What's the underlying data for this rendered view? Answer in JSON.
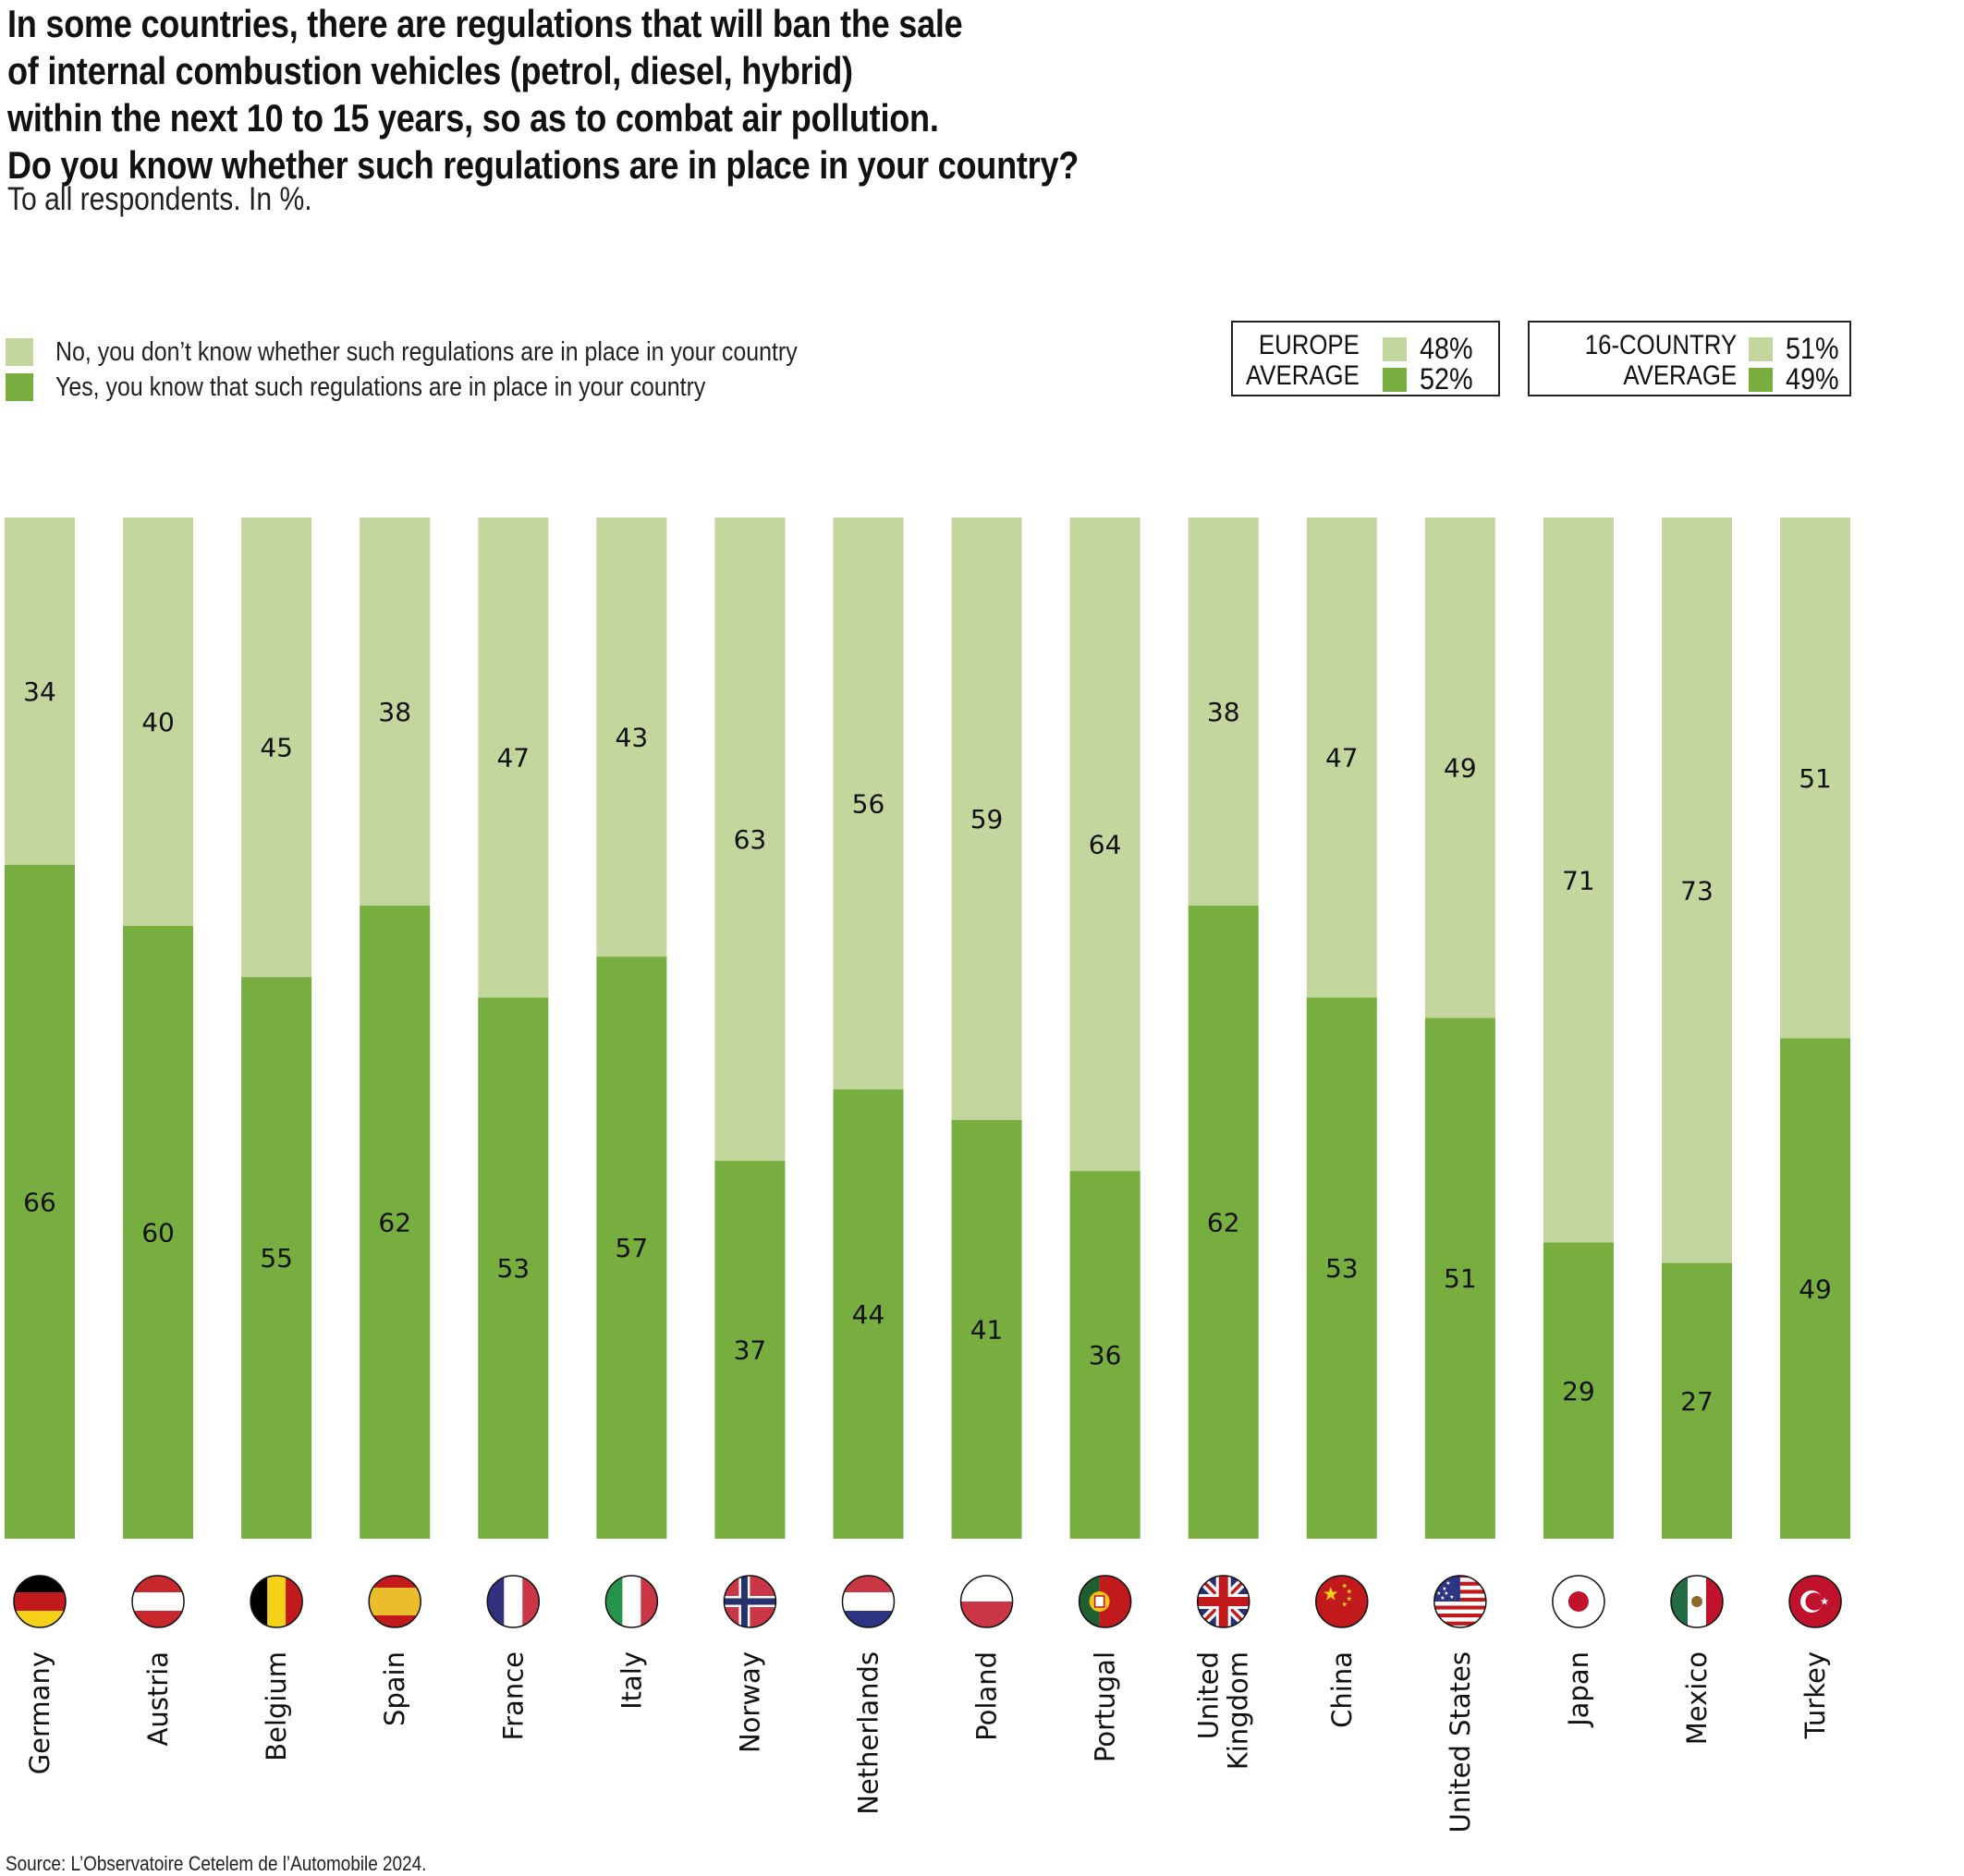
{
  "title_lines": [
    "In some countries, there are regulations that will ban the sale",
    "of internal combustion vehicles (petrol, diesel, hybrid)",
    "within the next 10 to 15 years, so as to combat air pollution.",
    "Do you know whether such regulations are in place in your country?"
  ],
  "subtitle": "To all respondents. In %.",
  "colors": {
    "no": "#c2d69e",
    "yes": "#78ad40",
    "text": "#111111",
    "border": "#222222"
  },
  "legend": {
    "no_label": "No, you don’t know whether such regulations are in place in your country",
    "yes_label": "Yes, you know that such regulations are in place in your country"
  },
  "averages": [
    {
      "name_line1": "EUROPE",
      "name_line2": "AVERAGE",
      "no": "48%",
      "yes": "52%"
    },
    {
      "name_line1": "16-COUNTRY",
      "name_line2": "AVERAGE",
      "no": "51%",
      "yes": "49%"
    }
  ],
  "source": "Source: L’Observatoire Cetelem de l’Automobile 2024.",
  "chart_data": {
    "type": "bar",
    "stacked": true,
    "orientation": "vertical",
    "title": "Do you know whether such regulations are in place in your country?",
    "xlabel": "",
    "ylabel": "",
    "ylim": [
      0,
      100
    ],
    "grid": false,
    "legend_position": "top-left",
    "categories": [
      "Germany",
      "Austria",
      "Belgium",
      "Spain",
      "France",
      "Italy",
      "Norway",
      "Netherlands",
      "Poland",
      "Portugal",
      "United Kingdom",
      "China",
      "United States",
      "Japan",
      "Mexico",
      "Turkey"
    ],
    "category_label_lines": [
      [
        "Germany"
      ],
      [
        "Austria"
      ],
      [
        "Belgium"
      ],
      [
        "Spain"
      ],
      [
        "France"
      ],
      [
        "Italy"
      ],
      [
        "Norway"
      ],
      [
        "Netherlands"
      ],
      [
        "Poland"
      ],
      [
        "Portugal"
      ],
      [
        "United",
        "Kingdom"
      ],
      [
        "China"
      ],
      [
        "United States"
      ],
      [
        "Japan"
      ],
      [
        "Mexico"
      ],
      [
        "Turkey"
      ]
    ],
    "flags": [
      "germany-flag",
      "austria-flag",
      "belgium-flag",
      "spain-flag",
      "france-flag",
      "italy-flag",
      "norway-flag",
      "netherlands-flag",
      "poland-flag",
      "portugal-flag",
      "uk-flag",
      "china-flag",
      "usa-flag",
      "japan-flag",
      "mexico-flag",
      "turkey-flag"
    ],
    "series": [
      {
        "name": "Yes, you know that such regulations are in place in your country",
        "key": "yes",
        "values": [
          66,
          60,
          55,
          62,
          53,
          57,
          37,
          44,
          41,
          36,
          62,
          53,
          51,
          29,
          27,
          49
        ]
      },
      {
        "name": "No, you don’t know whether such regulations are in place in your country",
        "key": "no",
        "values": [
          34,
          40,
          45,
          38,
          47,
          43,
          63,
          56,
          59,
          64,
          38,
          47,
          49,
          71,
          73,
          51
        ]
      }
    ]
  }
}
